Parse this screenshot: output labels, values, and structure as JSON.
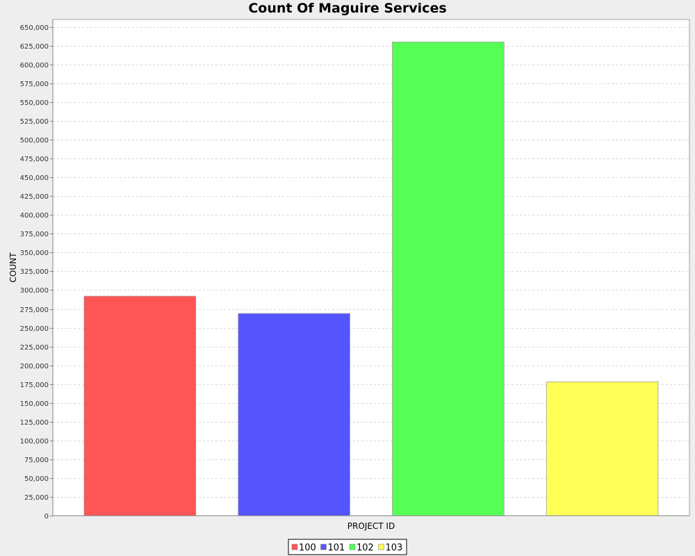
{
  "chart_data": {
    "type": "bar",
    "title": "Count Of Maguire Services",
    "xlabel": "PROJECT ID",
    "ylabel": "COUNT",
    "ylim": [
      0,
      660000
    ],
    "ytick_step": 25000,
    "grid": true,
    "legend_position": "bottom",
    "series": [
      {
        "name": "100",
        "value": 292000,
        "color": "#ff5555"
      },
      {
        "name": "101",
        "value": 269000,
        "color": "#5555ff"
      },
      {
        "name": "102",
        "value": 630000,
        "color": "#55ff55"
      },
      {
        "name": "103",
        "value": 178000,
        "color": "#ffff55"
      }
    ]
  }
}
